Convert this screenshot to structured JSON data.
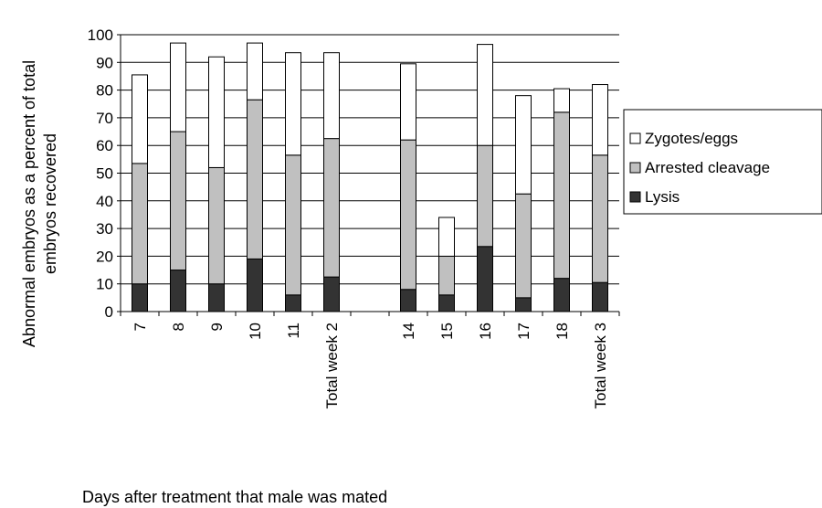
{
  "chart_data": {
    "type": "bar",
    "stacked": true,
    "categories": [
      "7",
      "8",
      "9",
      "10",
      "11",
      "Total week 2",
      "",
      "14",
      "15",
      "16",
      "17",
      "18",
      "Total week 3"
    ],
    "series": [
      {
        "name": "Lysis",
        "color": "#333333",
        "values": [
          10,
          15,
          10,
          19,
          6,
          12.5,
          null,
          8,
          6,
          23.5,
          5,
          12,
          10.5
        ]
      },
      {
        "name": "Arrested cleavage",
        "color": "#c0c0c0",
        "values": [
          43.5,
          50,
          42,
          57.5,
          50.5,
          50,
          null,
          54,
          14,
          36.5,
          37.5,
          60,
          46
        ]
      },
      {
        "name": "Zygotes/eggs",
        "color": "#ffffff",
        "values": [
          32,
          32,
          40,
          20.5,
          37,
          31,
          null,
          27.5,
          14,
          36.5,
          35.5,
          8.5,
          25.5
        ]
      }
    ],
    "legend_order": [
      "Zygotes/eggs",
      "Arrested cleavage",
      "Lysis"
    ],
    "legend_position": "right",
    "xlabel": "Days after treatment that male was mated",
    "ylabel": [
      "Abnormal embryos as a percent of total",
      "embryos recovered"
    ],
    "ylim": [
      0,
      100
    ],
    "yticks": [
      0,
      10,
      20,
      30,
      40,
      50,
      60,
      70,
      80,
      90,
      100
    ],
    "grid": true
  }
}
